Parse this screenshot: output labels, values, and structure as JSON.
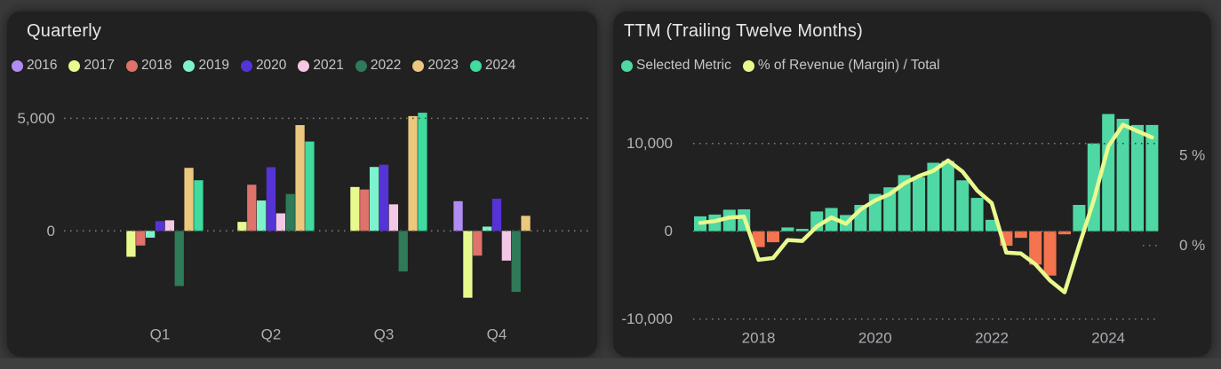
{
  "quarterly_panel": {
    "title": "Quarterly"
  },
  "ttm_panel": {
    "title": "TTM (Trailing Twelve Months)"
  },
  "chart_data": [
    {
      "type": "bar",
      "title": "Quarterly",
      "categories": [
        "Q1",
        "Q2",
        "Q3",
        "Q4"
      ],
      "series": [
        {
          "name": "2016",
          "color": "#b18cf2",
          "values": [
            null,
            null,
            null,
            1320
          ]
        },
        {
          "name": "2017",
          "color": "#e8fa8e",
          "values": [
            -1150,
            400,
            1950,
            -2970
          ]
        },
        {
          "name": "2018",
          "color": "#df726b",
          "values": [
            -650,
            2050,
            1840,
            -1100
          ]
        },
        {
          "name": "2019",
          "color": "#7df3cd",
          "values": [
            -300,
            1350,
            2840,
            190
          ]
        },
        {
          "name": "2020",
          "color": "#5633d6",
          "values": [
            430,
            2830,
            2940,
            1430
          ]
        },
        {
          "name": "2021",
          "color": "#f3c7e5",
          "values": [
            470,
            780,
            1180,
            -1320
          ]
        },
        {
          "name": "2022",
          "color": "#2e7a59",
          "values": [
            -2450,
            1640,
            -1800,
            -2710
          ]
        },
        {
          "name": "2023",
          "color": "#ecc77e",
          "values": [
            2800,
            4700,
            5100,
            670
          ]
        },
        {
          "name": "2024",
          "color": "#3fdb9f",
          "values": [
            2250,
            3970,
            5250,
            null
          ]
        }
      ],
      "y_gridlines": [
        5000,
        0
      ],
      "y_tick_labels": [
        "5,000",
        "0"
      ],
      "grid": "dotted",
      "legend_position": "top"
    },
    {
      "type": "bar+line",
      "title": "TTM (Trailing Twelve Months)",
      "x_start": "2017Q1",
      "frequency": "quarterly",
      "x_axis_labels": [
        "2018",
        "2020",
        "2022",
        "2024"
      ],
      "bar_series": {
        "name": "Selected Metric",
        "color_positive": "#4fd8a3",
        "color_negative": "#f3744e",
        "values": [
          1700,
          1900,
          2450,
          2500,
          -1800,
          -1250,
          430,
          270,
          2250,
          2650,
          1850,
          3000,
          4250,
          5000,
          6400,
          6150,
          7800,
          8000,
          5800,
          3800,
          1300,
          -1650,
          -750,
          -3800,
          -5050,
          -350,
          3000,
          10000,
          13350,
          12800,
          12100,
          12100
        ]
      },
      "line_series": {
        "name": "% of Revenue (Margin) / Total",
        "color": "#e9f98e",
        "values_pct": [
          1.25,
          1.35,
          1.55,
          1.6,
          -0.8,
          -0.7,
          0.3,
          0.25,
          1.05,
          1.55,
          1.2,
          2.0,
          2.5,
          2.85,
          3.45,
          3.85,
          4.15,
          4.72,
          4.1,
          3.05,
          2.35,
          -0.4,
          -0.45,
          -1.05,
          -1.95,
          -2.6,
          0.0,
          2.5,
          5.5,
          6.7,
          6.35,
          6.0
        ]
      },
      "left_axis": {
        "tick_labels": [
          "10,000",
          "0",
          "-10,000"
        ],
        "tick_values": [
          10000,
          0,
          -10000
        ]
      },
      "right_axis": {
        "tick_labels": [
          "5 %",
          "0 %"
        ],
        "tick_values_pct": [
          5,
          0
        ]
      },
      "grid": "dotted",
      "legend_position": "top"
    }
  ]
}
